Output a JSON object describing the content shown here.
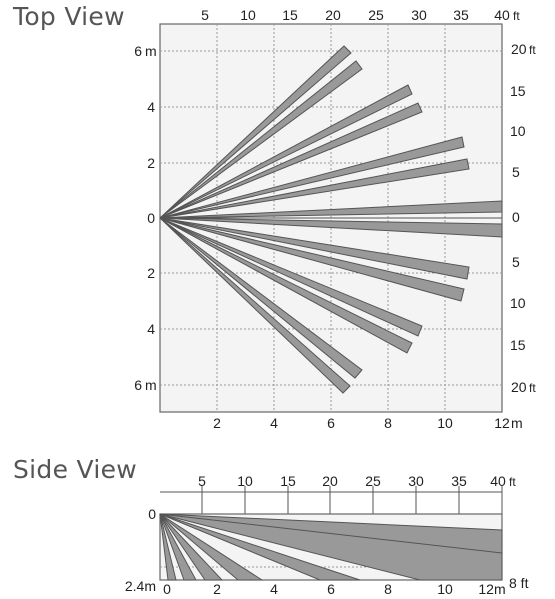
{
  "top_view": {
    "title": "Top View",
    "ft_top": [
      "5",
      "10",
      "15",
      "20",
      "25",
      "30",
      "35",
      "40"
    ],
    "ft_top_unit": "ft",
    "m_left": [
      "6",
      "4",
      "2",
      "0",
      "2",
      "4",
      "6"
    ],
    "m_unit": "m",
    "m_bottom": [
      "2",
      "4",
      "6",
      "8",
      "10",
      "12"
    ],
    "m_bottom_unit": "m",
    "ft_right": [
      "20",
      "15",
      "10",
      "5",
      "0",
      "5",
      "10",
      "15",
      "20"
    ],
    "ft_right_unit": "ft"
  },
  "side_view": {
    "title": "Side View",
    "ft_top": [
      "5",
      "10",
      "15",
      "20",
      "25",
      "30",
      "35",
      "40"
    ],
    "ft_top_unit": "ft",
    "left_top": "0",
    "left_bottom": "2.4m",
    "m_bottom": [
      "0",
      "2",
      "4",
      "6",
      "8",
      "10",
      "12m"
    ],
    "right_bottom": "8 ft"
  }
}
